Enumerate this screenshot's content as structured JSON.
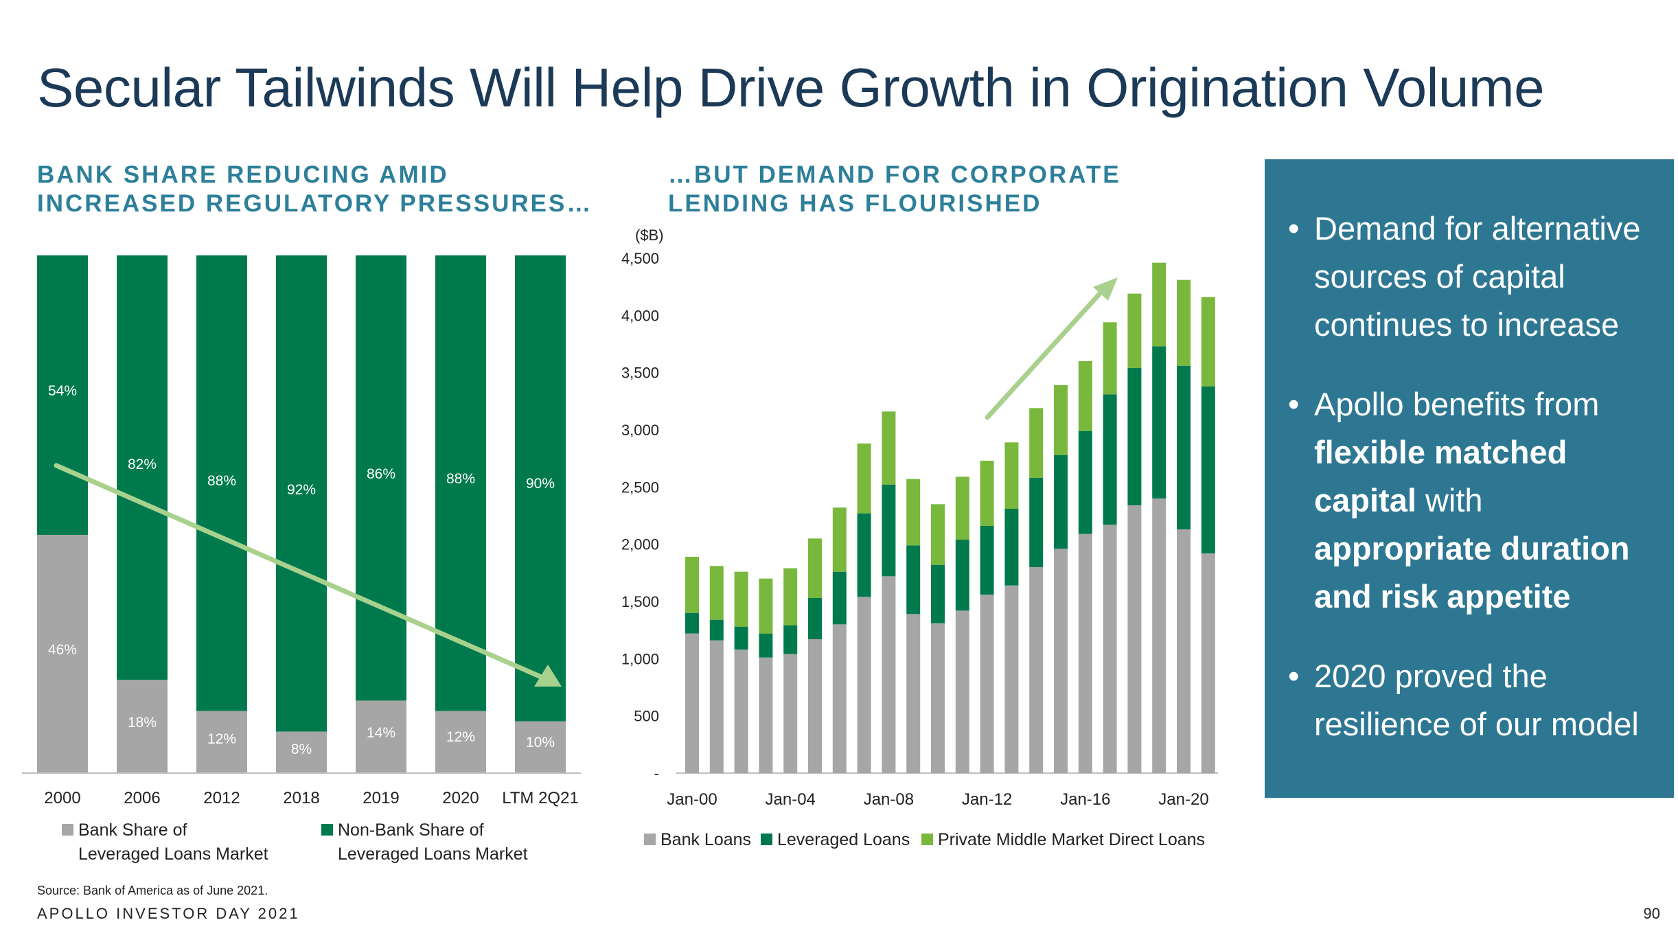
{
  "title": "Secular Tailwinds Will Help Drive Growth in Origination Volume",
  "left_subtitle": [
    "BANK SHARE REDUCING AMID",
    "INCREASED REGULATORY PRESSURES…"
  ],
  "right_subtitle": [
    "…BUT DEMAND FOR CORPORATE",
    "LENDING HAS FLOURISHED"
  ],
  "colors": {
    "bank_gray": "#a6a6a6",
    "nonbank_green": "#007a4d",
    "leveraged_green": "#007a4d",
    "private_green": "#79b83d",
    "arrow_green": "#a9d18e",
    "panel_bg": "#2e7792"
  },
  "chart_data": [
    {
      "type": "bar",
      "stacked": true,
      "percent": true,
      "categories": [
        "2000",
        "2006",
        "2012",
        "2018",
        "2019",
        "2020",
        "LTM 2Q21"
      ],
      "series": [
        {
          "name": "Bank Share of Leveraged Loans Market",
          "values": [
            46,
            18,
            12,
            8,
            14,
            12,
            10
          ],
          "labels": [
            "46%",
            "18%",
            "12%",
            "8%",
            "14%",
            "12%",
            "10%"
          ]
        },
        {
          "name": "Non-Bank Share of Leveraged Loans Market",
          "values": [
            54,
            82,
            88,
            92,
            86,
            88,
            90
          ],
          "labels": [
            "54%",
            "82%",
            "88%",
            "92%",
            "86%",
            "88%",
            "90%"
          ]
        }
      ],
      "legend": [
        [
          "Bank Share of",
          "Leveraged Loans Market"
        ],
        [
          "Non-Bank Share of",
          "Leveraged Loans Market"
        ]
      ],
      "legend_position": "bottom",
      "trend_arrow": "downward"
    },
    {
      "type": "bar",
      "stacked": true,
      "unit_label": "($B)",
      "x": [
        "2000",
        "2001",
        "2002",
        "2003",
        "2004",
        "2005",
        "2006",
        "2007",
        "2008",
        "2009",
        "2010",
        "2011",
        "2012",
        "2013",
        "2014",
        "2015",
        "2016",
        "2017",
        "2018",
        "2019",
        "2020",
        "2021"
      ],
      "x_tick_labels": [
        "Jan-00",
        "Jan-04",
        "Jan-08",
        "Jan-12",
        "Jan-16",
        "Jan-20"
      ],
      "y_ticks": [
        "-",
        "500",
        "1,000",
        "1,500",
        "2,000",
        "2,500",
        "3,000",
        "3,500",
        "4,000",
        "4,500"
      ],
      "ylim": [
        0,
        4500
      ],
      "series": [
        {
          "name": "Bank Loans",
          "values": [
            1220,
            1160,
            1080,
            1010,
            1040,
            1170,
            1300,
            1540,
            1720,
            1390,
            1310,
            1420,
            1560,
            1640,
            1800,
            1960,
            2090,
            2170,
            2340,
            2400,
            2130,
            1920
          ]
        },
        {
          "name": "Leveraged Loans",
          "values": [
            180,
            180,
            200,
            210,
            250,
            360,
            460,
            730,
            800,
            600,
            510,
            620,
            600,
            670,
            780,
            820,
            900,
            1140,
            1200,
            1330,
            1430,
            1460
          ]
        },
        {
          "name": "Private Middle Market Direct Loans",
          "values": [
            490,
            470,
            480,
            480,
            500,
            520,
            560,
            610,
            640,
            580,
            530,
            550,
            570,
            580,
            610,
            610,
            610,
            630,
            650,
            730,
            750,
            780
          ]
        }
      ],
      "legend_position": "bottom",
      "trend_arrow": "upward"
    }
  ],
  "panel": {
    "bullets": [
      [
        {
          "t": "Demand for alternative sources of capital continues to increase",
          "b": false
        }
      ],
      [
        {
          "t": "Apollo benefits from ",
          "b": false
        },
        {
          "t": "flexible matched capital",
          "b": true
        },
        {
          "t": " with ",
          "b": false
        },
        {
          "t": "appropriate duration and risk appetite",
          "b": true
        }
      ],
      [
        {
          "t": "2020 proved the resilience of our model",
          "b": false
        }
      ]
    ]
  },
  "source": "Source: Bank of America as of June 2021.",
  "footer": "APOLLO INVESTOR DAY 2021",
  "page_number": "90"
}
